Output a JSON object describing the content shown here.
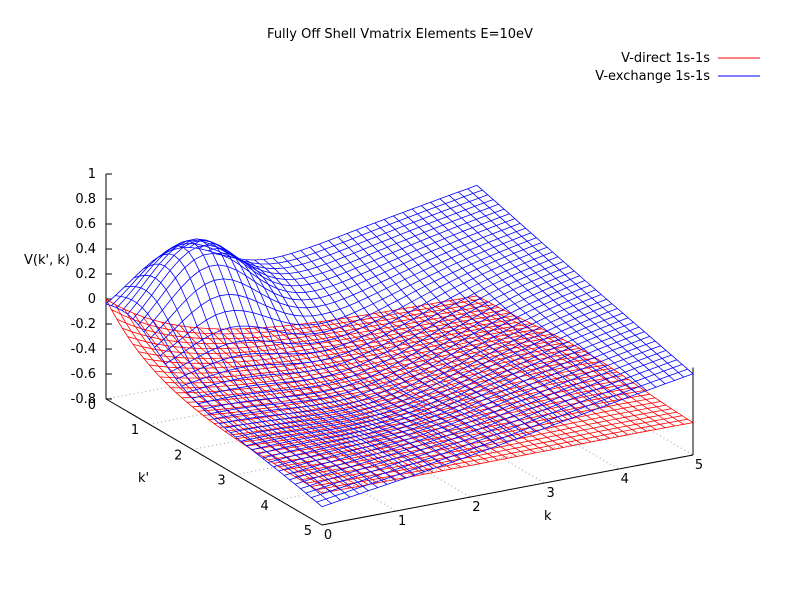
{
  "chart_data": {
    "type": "surface",
    "title": "Fully Off Shell Vmatrix Elements E=10eV",
    "xlabel": "k",
    "ylabel": "k'",
    "zlabel": "V(k', k)",
    "xlim": [
      0,
      5
    ],
    "ylim": [
      0,
      5
    ],
    "zlim": [
      -0.8,
      1
    ],
    "x_ticks": [
      "0",
      "1",
      "2",
      "3",
      "4",
      "5"
    ],
    "y_ticks": [
      "0",
      "1",
      "2",
      "3",
      "4",
      "5"
    ],
    "z_ticks": [
      "-0.8",
      "-0.6",
      "-0.4",
      "-0.2",
      "0",
      "0.2",
      "0.4",
      "0.6",
      "0.8",
      "1"
    ],
    "grid": "dotted base grid",
    "legend_position": "top-right",
    "grid_points": 40,
    "series": [
      {
        "name": "V-direct 1s-1s",
        "color": "#ff0000",
        "sample_values": {
          "k=0,k'=0": 0.0,
          "k=5,k'=0": -0.46,
          "k=5,k'=5": -0.48,
          "k=0,k'=5": -0.55
        }
      },
      {
        "name": "V-exchange 1s-1s",
        "color": "#0000ff",
        "sample_values": {
          "k=0,k'=0": 0.0,
          "k=5,k'=0": 0.5,
          "k=5,k'=5": -0.2,
          "k=0,k'=1": 0.62,
          "k=1,k'=0": 0.58
        }
      }
    ]
  }
}
